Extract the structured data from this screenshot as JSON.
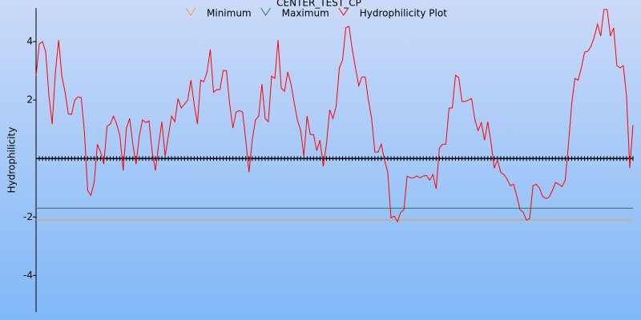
{
  "chart_data": {
    "type": "line",
    "title": "CENTER_TEST_CP",
    "y_label": "Hydrophilicity",
    "ylim": [
      -5.25,
      5.15
    ],
    "yticks": [
      -4,
      -2,
      2,
      4
    ],
    "baseline": 0,
    "series": [
      {
        "name": "Minimum",
        "color": "#f0a030",
        "value": -2.1
      },
      {
        "name": "Maximum",
        "color": "#208040",
        "value": -1.7
      },
      {
        "name": "Hydrophilicity Plot",
        "color": "#ff0000",
        "values": [
          2.82,
          3.92,
          4.0,
          3.64,
          2.14,
          1.18,
          2.96,
          4.05,
          2.82,
          2.27,
          1.53,
          1.51,
          2.0,
          2.11,
          2.08,
          0.9,
          -1.1,
          -1.26,
          -0.82,
          0.49,
          0.22,
          -0.19,
          1.1,
          1.18,
          1.45,
          1.18,
          0.77,
          -0.41,
          1.04,
          1.37,
          0.49,
          -0.19,
          0.77,
          1.32,
          1.23,
          1.29,
          0.22,
          -0.41,
          0.49,
          1.26,
          0.08,
          0.77,
          1.45,
          1.26,
          2.05,
          1.73,
          1.86,
          2.0,
          2.68,
          1.86,
          1.18,
          2.68,
          2.63,
          2.96,
          3.73,
          2.27,
          2.36,
          2.36,
          3.01,
          3.01,
          1.86,
          1.04,
          1.59,
          1.64,
          1.59,
          0.63,
          -0.47,
          0.63,
          1.32,
          1.45,
          2.55,
          1.37,
          1.26,
          2.82,
          2.74,
          4.05,
          2.41,
          2.3,
          2.96,
          2.55,
          1.92,
          1.32,
          0.96,
          0.08,
          1.45,
          0.82,
          0.82,
          0.27,
          0.63,
          -0.27,
          0.49,
          1.67,
          1.37,
          1.78,
          3.1,
          3.37,
          4.47,
          4.52,
          3.73,
          3.1,
          2.49,
          2.79,
          2.79,
          2.0,
          1.37,
          0.22,
          0.22,
          0.49,
          -0.05,
          -0.47,
          -2.03,
          -1.97,
          -2.16,
          -1.84,
          -1.75,
          -0.6,
          -0.66,
          -0.66,
          -0.6,
          -0.66,
          -0.6,
          -0.58,
          -0.74,
          -0.55,
          -1.04,
          0.36,
          0.49,
          0.49,
          1.73,
          1.73,
          2.85,
          2.77,
          1.95,
          1.95,
          2.0,
          2.05,
          1.32,
          0.96,
          1.23,
          0.63,
          1.26,
          0.55,
          -0.33,
          -0.05,
          -0.47,
          -0.55,
          -0.71,
          -0.93,
          -0.88,
          -1.29,
          -1.75,
          -1.84,
          -2.11,
          -2.05,
          -0.93,
          -0.88,
          -1.01,
          -1.29,
          -1.37,
          -1.32,
          -1.1,
          -0.82,
          -0.88,
          -0.96,
          -0.74,
          0.49,
          1.86,
          2.74,
          2.68,
          3.1,
          3.64,
          3.67,
          3.84,
          4.16,
          4.6,
          4.19,
          5.1,
          5.1,
          4.19,
          4.47,
          3.18,
          3.1,
          3.18,
          2.14,
          -0.33,
          1.15
        ]
      }
    ]
  }
}
